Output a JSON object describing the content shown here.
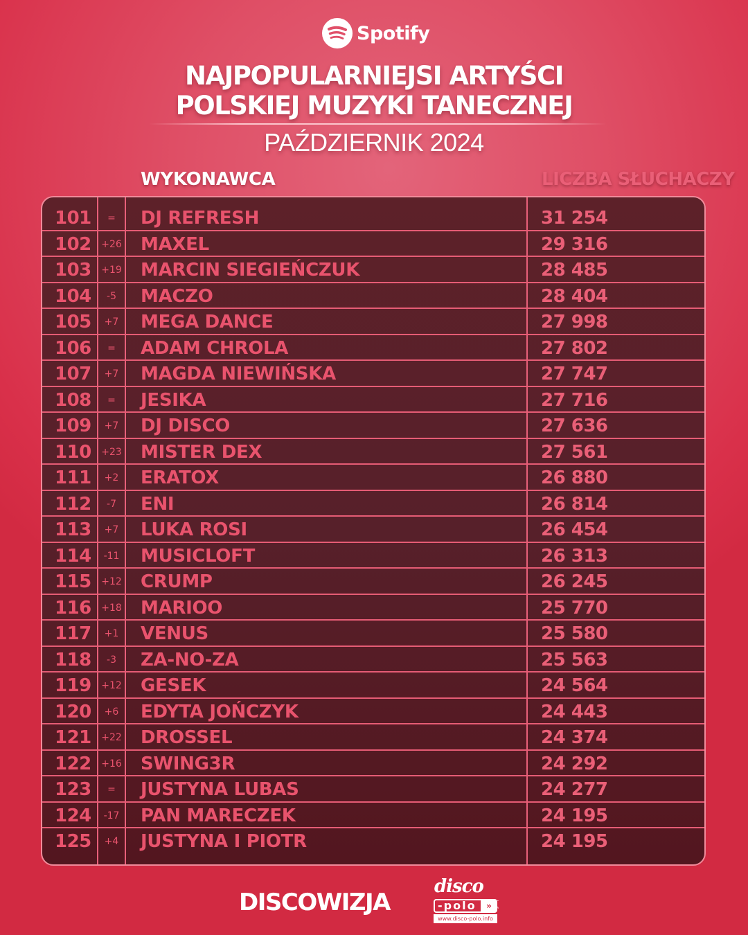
{
  "brand": {
    "logo_icon": "spotify-icon",
    "name": "Spotify"
  },
  "header": {
    "title_line1": "NAJPOPULARNIEJSI ARTYŚCI",
    "title_line2": "POLSKIEJ MUZYKI TANECZNEJ",
    "subtitle": "PAŹDZIERNIK 2024"
  },
  "columns": {
    "artist": "WYKONAWCA",
    "listeners": "LICZBA SŁUCHACZY"
  },
  "colors": {
    "background": "#dc3a52",
    "table_bg": "#5a1f28",
    "table_text": "#e9536d",
    "grid_line": "#e65c75",
    "header_text": "#ffffff"
  },
  "rows": [
    {
      "rank": "101",
      "change": "=",
      "artist": "DJ REFRESH",
      "listeners": "31 254"
    },
    {
      "rank": "102",
      "change": "+26",
      "artist": "MAXEL",
      "listeners": "29 316"
    },
    {
      "rank": "103",
      "change": "+19",
      "artist": "MARCIN SIEGIEŃCZUK",
      "listeners": "28 485"
    },
    {
      "rank": "104",
      "change": "-5",
      "artist": "MACZO",
      "listeners": "28 404"
    },
    {
      "rank": "105",
      "change": "+7",
      "artist": "MEGA DANCE",
      "listeners": "27 998"
    },
    {
      "rank": "106",
      "change": "=",
      "artist": "ADAM CHROLA",
      "listeners": "27 802"
    },
    {
      "rank": "107",
      "change": "+7",
      "artist": "MAGDA NIEWIŃSKA",
      "listeners": "27 747"
    },
    {
      "rank": "108",
      "change": "=",
      "artist": "JESIKA",
      "listeners": "27 716"
    },
    {
      "rank": "109",
      "change": "+7",
      "artist": "DJ DISCO",
      "listeners": "27 636"
    },
    {
      "rank": "110",
      "change": "+23",
      "artist": "MISTER DEX",
      "listeners": "27 561"
    },
    {
      "rank": "111",
      "change": "+2",
      "artist": "ERATOX",
      "listeners": "26 880"
    },
    {
      "rank": "112",
      "change": "-7",
      "artist": "ENI",
      "listeners": "26 814"
    },
    {
      "rank": "113",
      "change": "+7",
      "artist": "LUKA ROSI",
      "listeners": "26 454"
    },
    {
      "rank": "114",
      "change": "-11",
      "artist": "MUSICLOFT",
      "listeners": "26 313"
    },
    {
      "rank": "115",
      "change": "+12",
      "artist": "CRUMP",
      "listeners": "26 245"
    },
    {
      "rank": "116",
      "change": "+18",
      "artist": "MARIOO",
      "listeners": "25 770"
    },
    {
      "rank": "117",
      "change": "+1",
      "artist": "VENUS",
      "listeners": "25 580"
    },
    {
      "rank": "118",
      "change": "-3",
      "artist": "ZA-NO-ZA",
      "listeners": "25 563"
    },
    {
      "rank": "119",
      "change": "+12",
      "artist": "GESEK",
      "listeners": "24 564"
    },
    {
      "rank": "120",
      "change": "+6",
      "artist": "EDYTA JOŃCZYK",
      "listeners": "24 443"
    },
    {
      "rank": "121",
      "change": "+22",
      "artist": "DROSSEL",
      "listeners": "24 374"
    },
    {
      "rank": "122",
      "change": "+16",
      "artist": "SWING3R",
      "listeners": "24 292"
    },
    {
      "rank": "123",
      "change": "=",
      "artist": "JUSTYNA LUBAS",
      "listeners": "24 277"
    },
    {
      "rank": "124",
      "change": "-17",
      "artist": "PAN MARECZEK",
      "listeners": "24 195"
    },
    {
      "rank": "125",
      "change": "+4",
      "artist": "JUSTYNA I PIOTR",
      "listeners": "24 195"
    }
  ],
  "footer": {
    "discowizja": "DISCOWIZJA",
    "discopolo": {
      "line1": "disco",
      "line2": "-polo",
      "arrow": "»",
      "side": "info",
      "url": "www.disco-polo.info"
    }
  }
}
